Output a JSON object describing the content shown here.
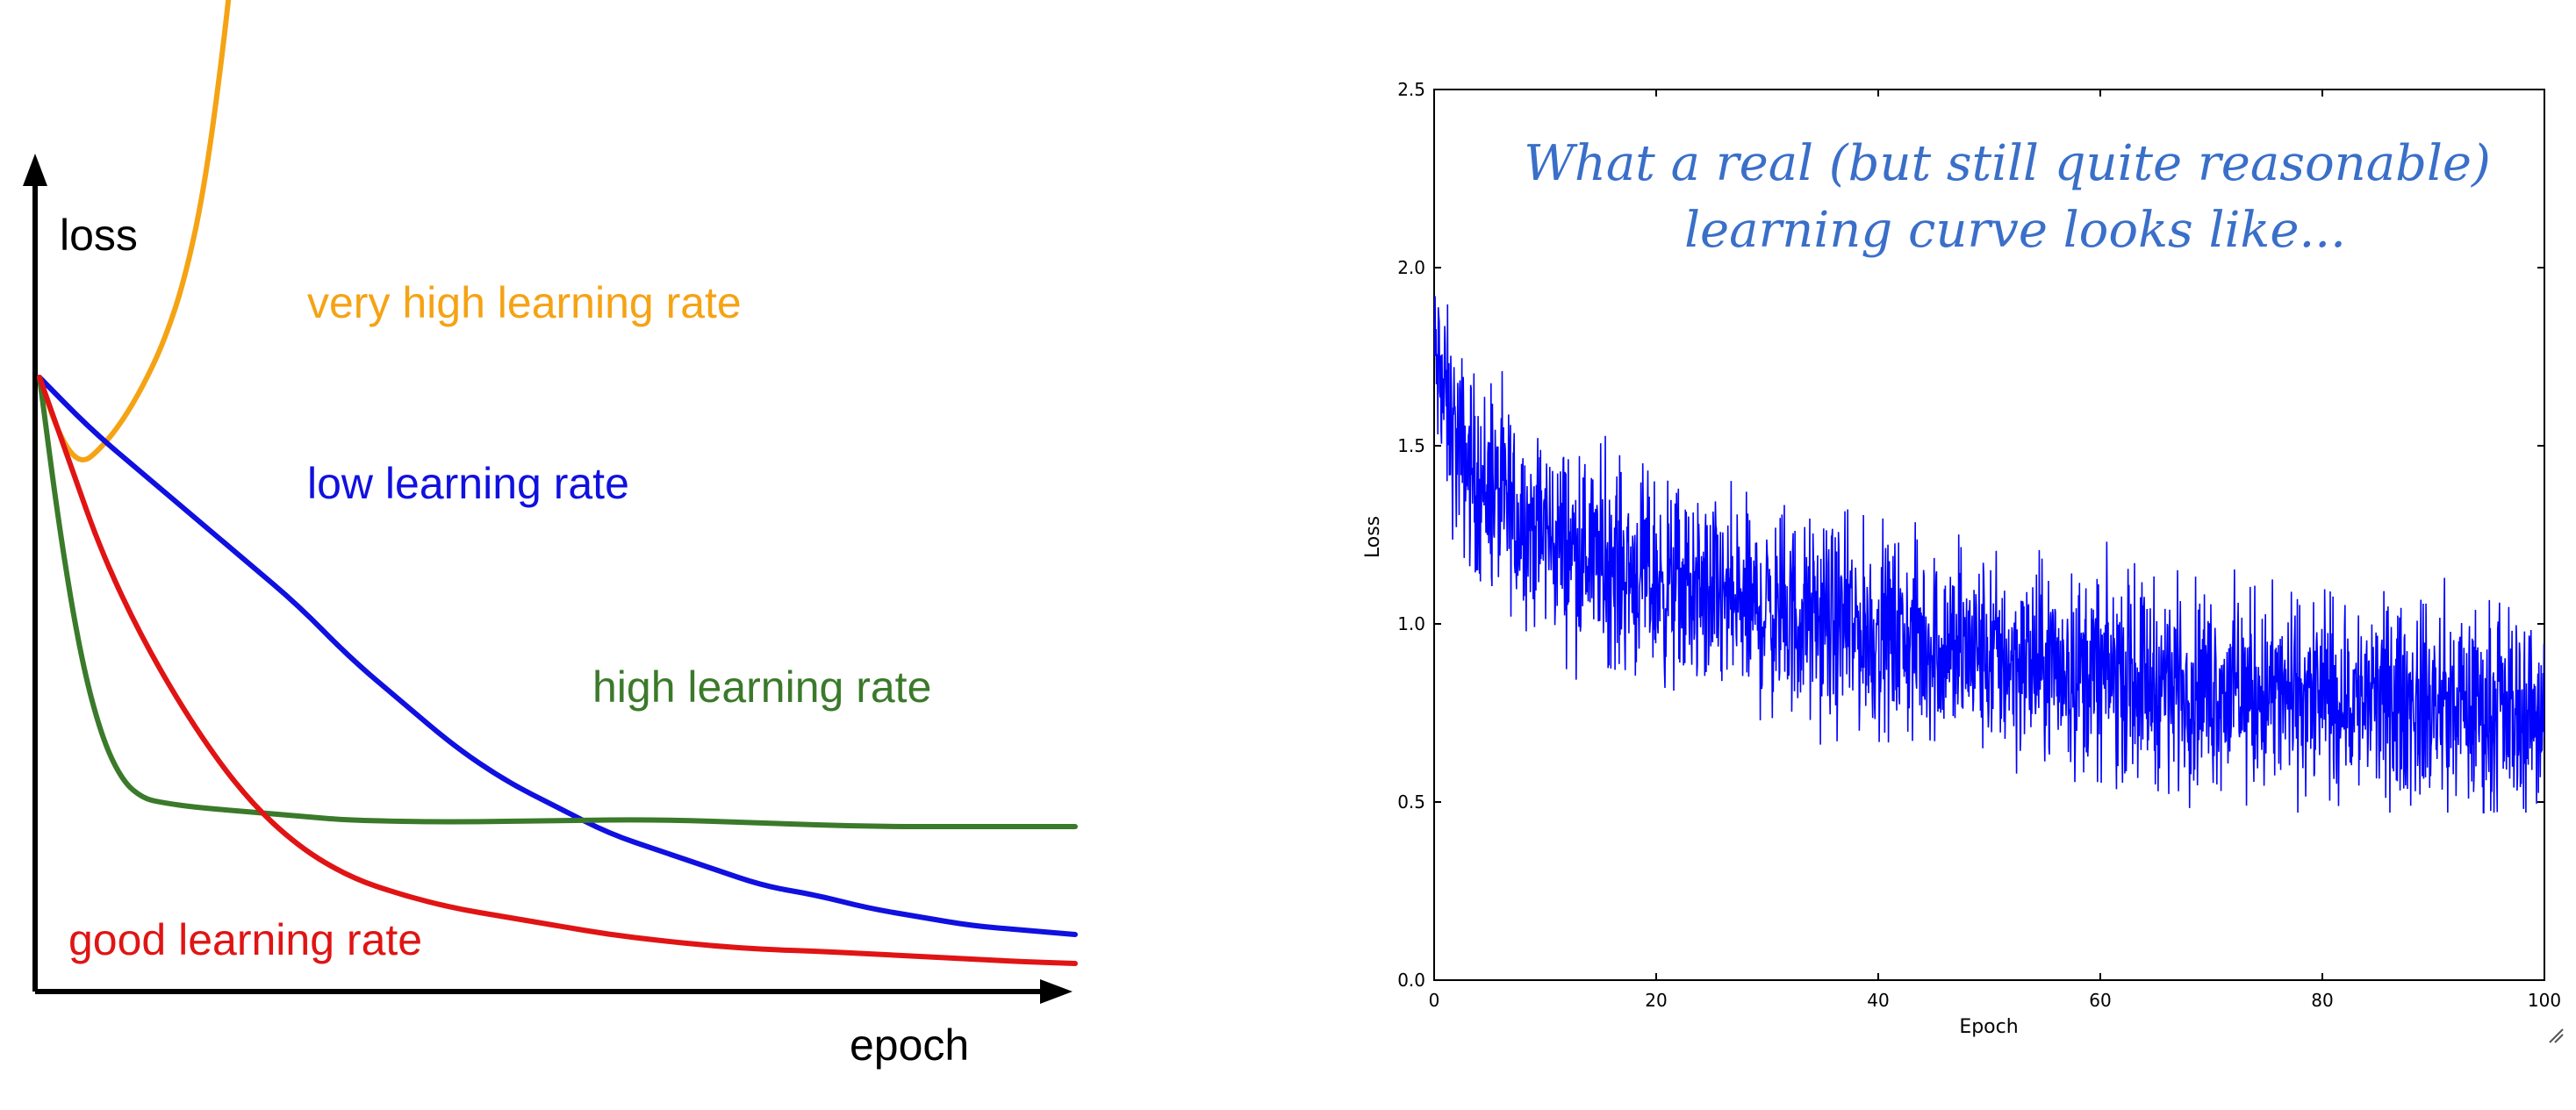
{
  "chart_data": [
    {
      "type": "line",
      "title": "",
      "xlabel": "epoch",
      "ylabel": "loss",
      "grid": false,
      "series": [
        {
          "name": "very high learning rate",
          "color": "#f5a314",
          "x": [
            0,
            2,
            4,
            6,
            8,
            10,
            12,
            14,
            16,
            18,
            19
          ],
          "y": [
            0.7,
            0.63,
            0.6,
            0.62,
            0.65,
            0.69,
            0.74,
            0.81,
            0.92,
            1.1,
            1.22
          ]
        },
        {
          "name": "low learning rate",
          "color": "#1010e0",
          "x": [
            0,
            5,
            10,
            15,
            20,
            25,
            30,
            35,
            40,
            45,
            50,
            55,
            60,
            65,
            70,
            75,
            80,
            85,
            90,
            95,
            100
          ],
          "y": [
            0.7,
            0.64,
            0.59,
            0.54,
            0.49,
            0.44,
            0.38,
            0.33,
            0.28,
            0.24,
            0.21,
            0.18,
            0.16,
            0.14,
            0.12,
            0.11,
            0.095,
            0.085,
            0.075,
            0.07,
            0.065
          ]
        },
        {
          "name": "high learning rate",
          "color": "#3a7a2a",
          "x": [
            0,
            2,
            4,
            6,
            8,
            10,
            12,
            15,
            20,
            25,
            30,
            40,
            50,
            60,
            70,
            80,
            90,
            100
          ],
          "y": [
            0.7,
            0.52,
            0.38,
            0.29,
            0.24,
            0.22,
            0.215,
            0.21,
            0.205,
            0.2,
            0.195,
            0.193,
            0.195,
            0.196,
            0.192,
            0.188,
            0.188,
            0.188
          ]
        },
        {
          "name": "good learning rate",
          "color": "#e01414",
          "x": [
            0,
            3,
            6,
            10,
            15,
            20,
            25,
            30,
            35,
            40,
            45,
            50,
            55,
            60,
            65,
            70,
            75,
            80,
            85,
            90,
            95,
            100
          ],
          "y": [
            0.7,
            0.6,
            0.5,
            0.4,
            0.3,
            0.22,
            0.165,
            0.13,
            0.11,
            0.095,
            0.085,
            0.075,
            0.065,
            0.058,
            0.052,
            0.048,
            0.046,
            0.043,
            0.04,
            0.037,
            0.034,
            0.032
          ]
        }
      ]
    },
    {
      "type": "line",
      "title": "",
      "annotation": "What a real (but still quite reasonable) learning curve looks like...",
      "xlabel": "Epoch",
      "ylabel": "Loss",
      "xlim": [
        0,
        100
      ],
      "ylim": [
        0.0,
        2.5
      ],
      "xticks": [
        "0",
        "20",
        "40",
        "60",
        "80",
        "100"
      ],
      "yticks": [
        "0.0",
        "0.5",
        "1.0",
        "1.5",
        "2.0",
        "2.5"
      ],
      "grid": false,
      "series": [
        {
          "color": "#0000ff",
          "trend_x": [
            0,
            1,
            2,
            4,
            6,
            8,
            10,
            15,
            20,
            25,
            30,
            35,
            40,
            45,
            50,
            55,
            60,
            65,
            70,
            75,
            80,
            85,
            90,
            95,
            100
          ],
          "trend_y": [
            1.75,
            1.62,
            1.5,
            1.4,
            1.34,
            1.29,
            1.25,
            1.18,
            1.12,
            1.07,
            1.03,
            1.0,
            0.97,
            0.94,
            0.91,
            0.88,
            0.86,
            0.84,
            0.82,
            0.8,
            0.79,
            0.78,
            0.77,
            0.76,
            0.75
          ],
          "noise_amplitude": 0.15,
          "min_observed": 0.47,
          "max_observed": 1.92
        }
      ]
    }
  ]
}
